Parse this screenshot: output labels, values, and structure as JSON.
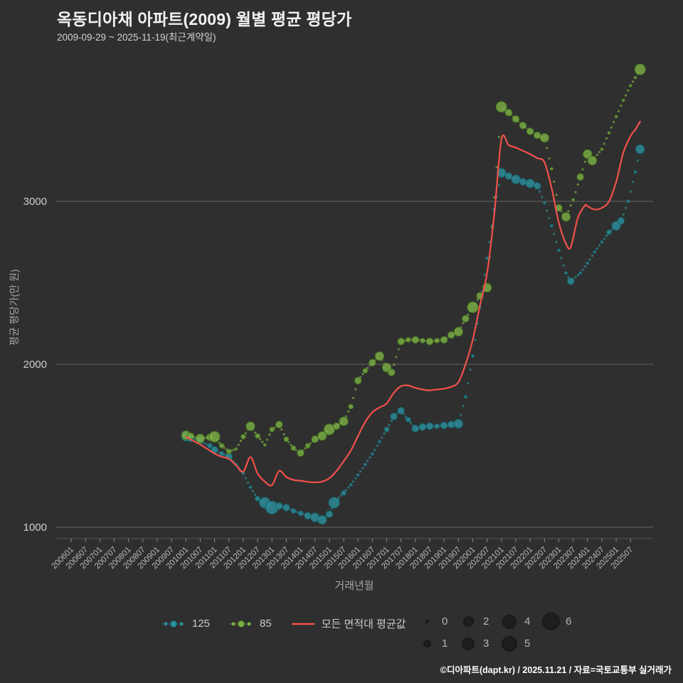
{
  "footer": {
    "credit": "©디아파트(dapt.kr) / 2025.11.21 / 자료=국토교통부 실거래가"
  },
  "chart_data": {
    "type": "scatter",
    "title": "옥동디아채 아파트(2009) 월별 평균 평당가",
    "subtitle": "2009-09-29 ~ 2025-11-19(최근계약일)",
    "xlabel": "거래년월",
    "ylabel": "평균 평당가(만 원)",
    "ylim": [
      950,
      3950
    ],
    "yticks": [
      1000,
      2000,
      3000
    ],
    "xticks": [
      "200601",
      "200607",
      "200701",
      "200707",
      "200801",
      "200807",
      "200901",
      "200907",
      "201001",
      "201007",
      "201101",
      "201107",
      "201201",
      "201207",
      "201301",
      "201307",
      "201401",
      "201407",
      "201501",
      "201507",
      "201601",
      "201607",
      "201701",
      "201707",
      "201801",
      "201807",
      "201901",
      "201907",
      "202001",
      "202007",
      "202101",
      "202107",
      "202201",
      "202207",
      "202301",
      "202307",
      "202401",
      "202407",
      "202501",
      "202507"
    ],
    "layout": {
      "background": "#2f2f2f",
      "grid_color": "#646464",
      "axis_color": "#565656",
      "tick_color": "#8a8a8a",
      "tick_label_color": "#b9b9b9",
      "ytick_label_color": "#cfcfcf",
      "legend_position": "bottom"
    },
    "series": [
      {
        "name": "125",
        "type": "scatter",
        "color": "#2c8f9b",
        "edge": "#175f69",
        "points": [
          [
            "201001",
            1555,
            3
          ],
          [
            "201003",
            1545,
            2
          ],
          [
            "201007",
            1530,
            2
          ],
          [
            "201011",
            1500,
            1
          ],
          [
            "201101",
            1475,
            2
          ],
          [
            "201104",
            1450,
            1
          ],
          [
            "201107",
            1435,
            2
          ],
          [
            "201110",
            1385,
            0
          ],
          [
            "201201",
            1330,
            0
          ],
          [
            "201204",
            1245,
            0
          ],
          [
            "201207",
            1175,
            1
          ],
          [
            "201210",
            1150,
            4
          ],
          [
            "201301",
            1120,
            5
          ],
          [
            "201304",
            1130,
            2
          ],
          [
            "201307",
            1120,
            2
          ],
          [
            "201310",
            1100,
            1
          ],
          [
            "201401",
            1085,
            1
          ],
          [
            "201404",
            1070,
            2
          ],
          [
            "201407",
            1060,
            3
          ],
          [
            "201410",
            1045,
            3
          ],
          [
            "201501",
            1080,
            2
          ],
          [
            "201503",
            1150,
            4
          ],
          [
            "201507",
            1210,
            1
          ],
          [
            "201510",
            1260,
            0
          ],
          [
            "201601",
            1320,
            0
          ],
          [
            "201604",
            1385,
            0
          ],
          [
            "201607",
            1450,
            0
          ],
          [
            "201610",
            1525,
            0
          ],
          [
            "201701",
            1600,
            1
          ],
          [
            "201704",
            1680,
            2
          ],
          [
            "201707",
            1715,
            2
          ],
          [
            "201710",
            1660,
            1
          ],
          [
            "201801",
            1605,
            2
          ],
          [
            "201804",
            1615,
            2
          ],
          [
            "201807",
            1620,
            2
          ],
          [
            "201810",
            1620,
            1
          ],
          [
            "201901",
            1625,
            2
          ],
          [
            "201904",
            1630,
            2
          ],
          [
            "201907",
            1635,
            3
          ],
          [
            "201910",
            1800,
            0
          ],
          [
            "202001",
            2050,
            0
          ],
          [
            "202004",
            2350,
            0
          ],
          [
            "202007",
            2650,
            0
          ],
          [
            "202010",
            2950,
            0
          ],
          [
            "202101",
            3175,
            3
          ],
          [
            "202104",
            3155,
            2
          ],
          [
            "202107",
            3135,
            3
          ],
          [
            "202110",
            3120,
            2
          ],
          [
            "202201",
            3110,
            3
          ],
          [
            "202204",
            3095,
            2
          ],
          [
            "202207",
            2990,
            0
          ],
          [
            "202210",
            2850,
            0
          ],
          [
            "202301",
            2700,
            0
          ],
          [
            "202304",
            2560,
            0
          ],
          [
            "202306",
            2510,
            2
          ],
          [
            "202310",
            2560,
            0
          ],
          [
            "202401",
            2620,
            0
          ],
          [
            "202404",
            2690,
            0
          ],
          [
            "202407",
            2750,
            0
          ],
          [
            "202410",
            2810,
            1
          ],
          [
            "202501",
            2850,
            3
          ],
          [
            "202503",
            2880,
            2
          ],
          [
            "202506",
            3000,
            0
          ],
          [
            "202509",
            3180,
            0
          ],
          [
            "202511",
            3320,
            3
          ]
        ]
      },
      {
        "name": "85",
        "type": "scatter",
        "color": "#7dae46",
        "edge": "#40701f",
        "points": [
          [
            "201001",
            1565,
            3
          ],
          [
            "201003",
            1558,
            2
          ],
          [
            "201007",
            1545,
            3
          ],
          [
            "201011",
            1552,
            2
          ],
          [
            "201101",
            1555,
            4
          ],
          [
            "201104",
            1500,
            1
          ],
          [
            "201107",
            1465,
            1
          ],
          [
            "201110",
            1480,
            0
          ],
          [
            "201201",
            1555,
            1
          ],
          [
            "201204",
            1620,
            3
          ],
          [
            "201207",
            1560,
            1
          ],
          [
            "201210",
            1505,
            0
          ],
          [
            "201301",
            1600,
            1
          ],
          [
            "201304",
            1630,
            2
          ],
          [
            "201307",
            1540,
            1
          ],
          [
            "201310",
            1485,
            1
          ],
          [
            "201401",
            1455,
            2
          ],
          [
            "201404",
            1500,
            1
          ],
          [
            "201407",
            1540,
            2
          ],
          [
            "201410",
            1560,
            3
          ],
          [
            "201501",
            1600,
            4
          ],
          [
            "201504",
            1620,
            2
          ],
          [
            "201507",
            1650,
            3
          ],
          [
            "201510",
            1740,
            1
          ],
          [
            "201601",
            1900,
            2
          ],
          [
            "201604",
            1960,
            1
          ],
          [
            "201607",
            2010,
            2
          ],
          [
            "201610",
            2050,
            3
          ],
          [
            "201701",
            1980,
            3
          ],
          [
            "201703",
            1950,
            2
          ],
          [
            "201707",
            2140,
            2
          ],
          [
            "201710",
            2150,
            1
          ],
          [
            "201801",
            2150,
            2
          ],
          [
            "201804",
            2145,
            1
          ],
          [
            "201807",
            2140,
            2
          ],
          [
            "201810",
            2145,
            1
          ],
          [
            "201901",
            2150,
            2
          ],
          [
            "201904",
            2180,
            2
          ],
          [
            "201907",
            2200,
            3
          ],
          [
            "201910",
            2280,
            2
          ],
          [
            "202001",
            2350,
            4
          ],
          [
            "202004",
            2420,
            2
          ],
          [
            "202007",
            2470,
            3
          ],
          [
            "202101",
            3580,
            4
          ],
          [
            "202104",
            3545,
            2
          ],
          [
            "202107",
            3505,
            2
          ],
          [
            "202110",
            3465,
            2
          ],
          [
            "202201",
            3430,
            2
          ],
          [
            "202204",
            3405,
            2
          ],
          [
            "202207",
            3390,
            3
          ],
          [
            "202210",
            3200,
            0
          ],
          [
            "202301",
            2960,
            2
          ],
          [
            "202304",
            2905,
            3
          ],
          [
            "202307",
            3010,
            0
          ],
          [
            "202310",
            3150,
            2
          ],
          [
            "202401",
            3290,
            3
          ],
          [
            "202403",
            3250,
            3
          ],
          [
            "202407",
            3320,
            0
          ],
          [
            "202410",
            3420,
            0
          ],
          [
            "202501",
            3520,
            0
          ],
          [
            "202504",
            3620,
            0
          ],
          [
            "202507",
            3710,
            0
          ],
          [
            "202509",
            3760,
            0
          ],
          [
            "202511",
            3810,
            4
          ]
        ]
      },
      {
        "name": "모든 면적대 평균값",
        "type": "line",
        "color": "#f2504b",
        "points": [
          [
            "201001",
            1555
          ],
          [
            "201004",
            1530
          ],
          [
            "201007",
            1508
          ],
          [
            "201010",
            1480
          ],
          [
            "201101",
            1452
          ],
          [
            "201104",
            1432
          ],
          [
            "201107",
            1420
          ],
          [
            "201110",
            1380
          ],
          [
            "201201",
            1340
          ],
          [
            "201204",
            1430
          ],
          [
            "201207",
            1330
          ],
          [
            "201210",
            1280
          ],
          [
            "201301",
            1258
          ],
          [
            "201304",
            1345
          ],
          [
            "201307",
            1308
          ],
          [
            "201310",
            1290
          ],
          [
            "201401",
            1285
          ],
          [
            "201404",
            1278
          ],
          [
            "201407",
            1275
          ],
          [
            "201410",
            1280
          ],
          [
            "201501",
            1300
          ],
          [
            "201504",
            1345
          ],
          [
            "201507",
            1405
          ],
          [
            "201510",
            1470
          ],
          [
            "201601",
            1560
          ],
          [
            "201604",
            1645
          ],
          [
            "201607",
            1705
          ],
          [
            "201610",
            1735
          ],
          [
            "201701",
            1760
          ],
          [
            "201704",
            1825
          ],
          [
            "201707",
            1865
          ],
          [
            "201710",
            1870
          ],
          [
            "201801",
            1855
          ],
          [
            "201804",
            1845
          ],
          [
            "201807",
            1840
          ],
          [
            "201810",
            1845
          ],
          [
            "201901",
            1850
          ],
          [
            "201904",
            1862
          ],
          [
            "201907",
            1890
          ],
          [
            "201910",
            2000
          ],
          [
            "202001",
            2150
          ],
          [
            "202004",
            2360
          ],
          [
            "202007",
            2560
          ],
          [
            "202010",
            2920
          ],
          [
            "202101",
            3380
          ],
          [
            "202104",
            3345
          ],
          [
            "202107",
            3330
          ],
          [
            "202110",
            3310
          ],
          [
            "202201",
            3290
          ],
          [
            "202204",
            3265
          ],
          [
            "202207",
            3240
          ],
          [
            "202210",
            3080
          ],
          [
            "202301",
            2870
          ],
          [
            "202304",
            2740
          ],
          [
            "202306",
            2720
          ],
          [
            "202309",
            2900
          ],
          [
            "202312",
            2975
          ],
          [
            "202401",
            2970
          ],
          [
            "202404",
            2950
          ],
          [
            "202407",
            2960
          ],
          [
            "202410",
            3000
          ],
          [
            "202501",
            3120
          ],
          [
            "202504",
            3300
          ],
          [
            "202507",
            3400
          ],
          [
            "202509",
            3440
          ],
          [
            "202511",
            3490
          ]
        ]
      }
    ],
    "size_legend": {
      "row1": [
        {
          "label": "0",
          "r": 2.5
        },
        {
          "label": "2",
          "r": 7.5
        },
        {
          "label": "4",
          "r": 10
        },
        {
          "label": "6",
          "r": 12.5
        }
      ],
      "row2": [
        {
          "label": "1",
          "r": 5.5
        },
        {
          "label": "3",
          "r": 9
        },
        {
          "label": "5",
          "r": 11
        }
      ]
    }
  }
}
